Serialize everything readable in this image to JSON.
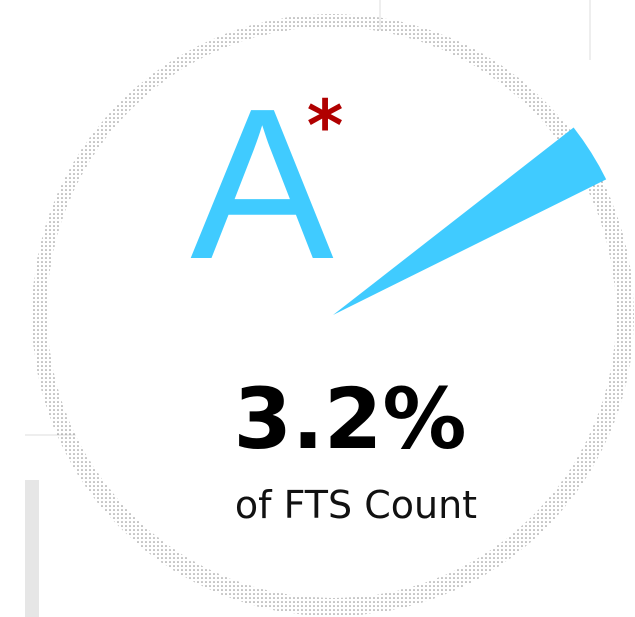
{
  "chart_data": {
    "type": "pie",
    "categories": [
      "A"
    ],
    "values": [
      3.2
    ],
    "value_labels": [
      "3.2%"
    ],
    "color": "#40cbff",
    "annotation": "*",
    "subtitle": "of FTS Count"
  }
}
